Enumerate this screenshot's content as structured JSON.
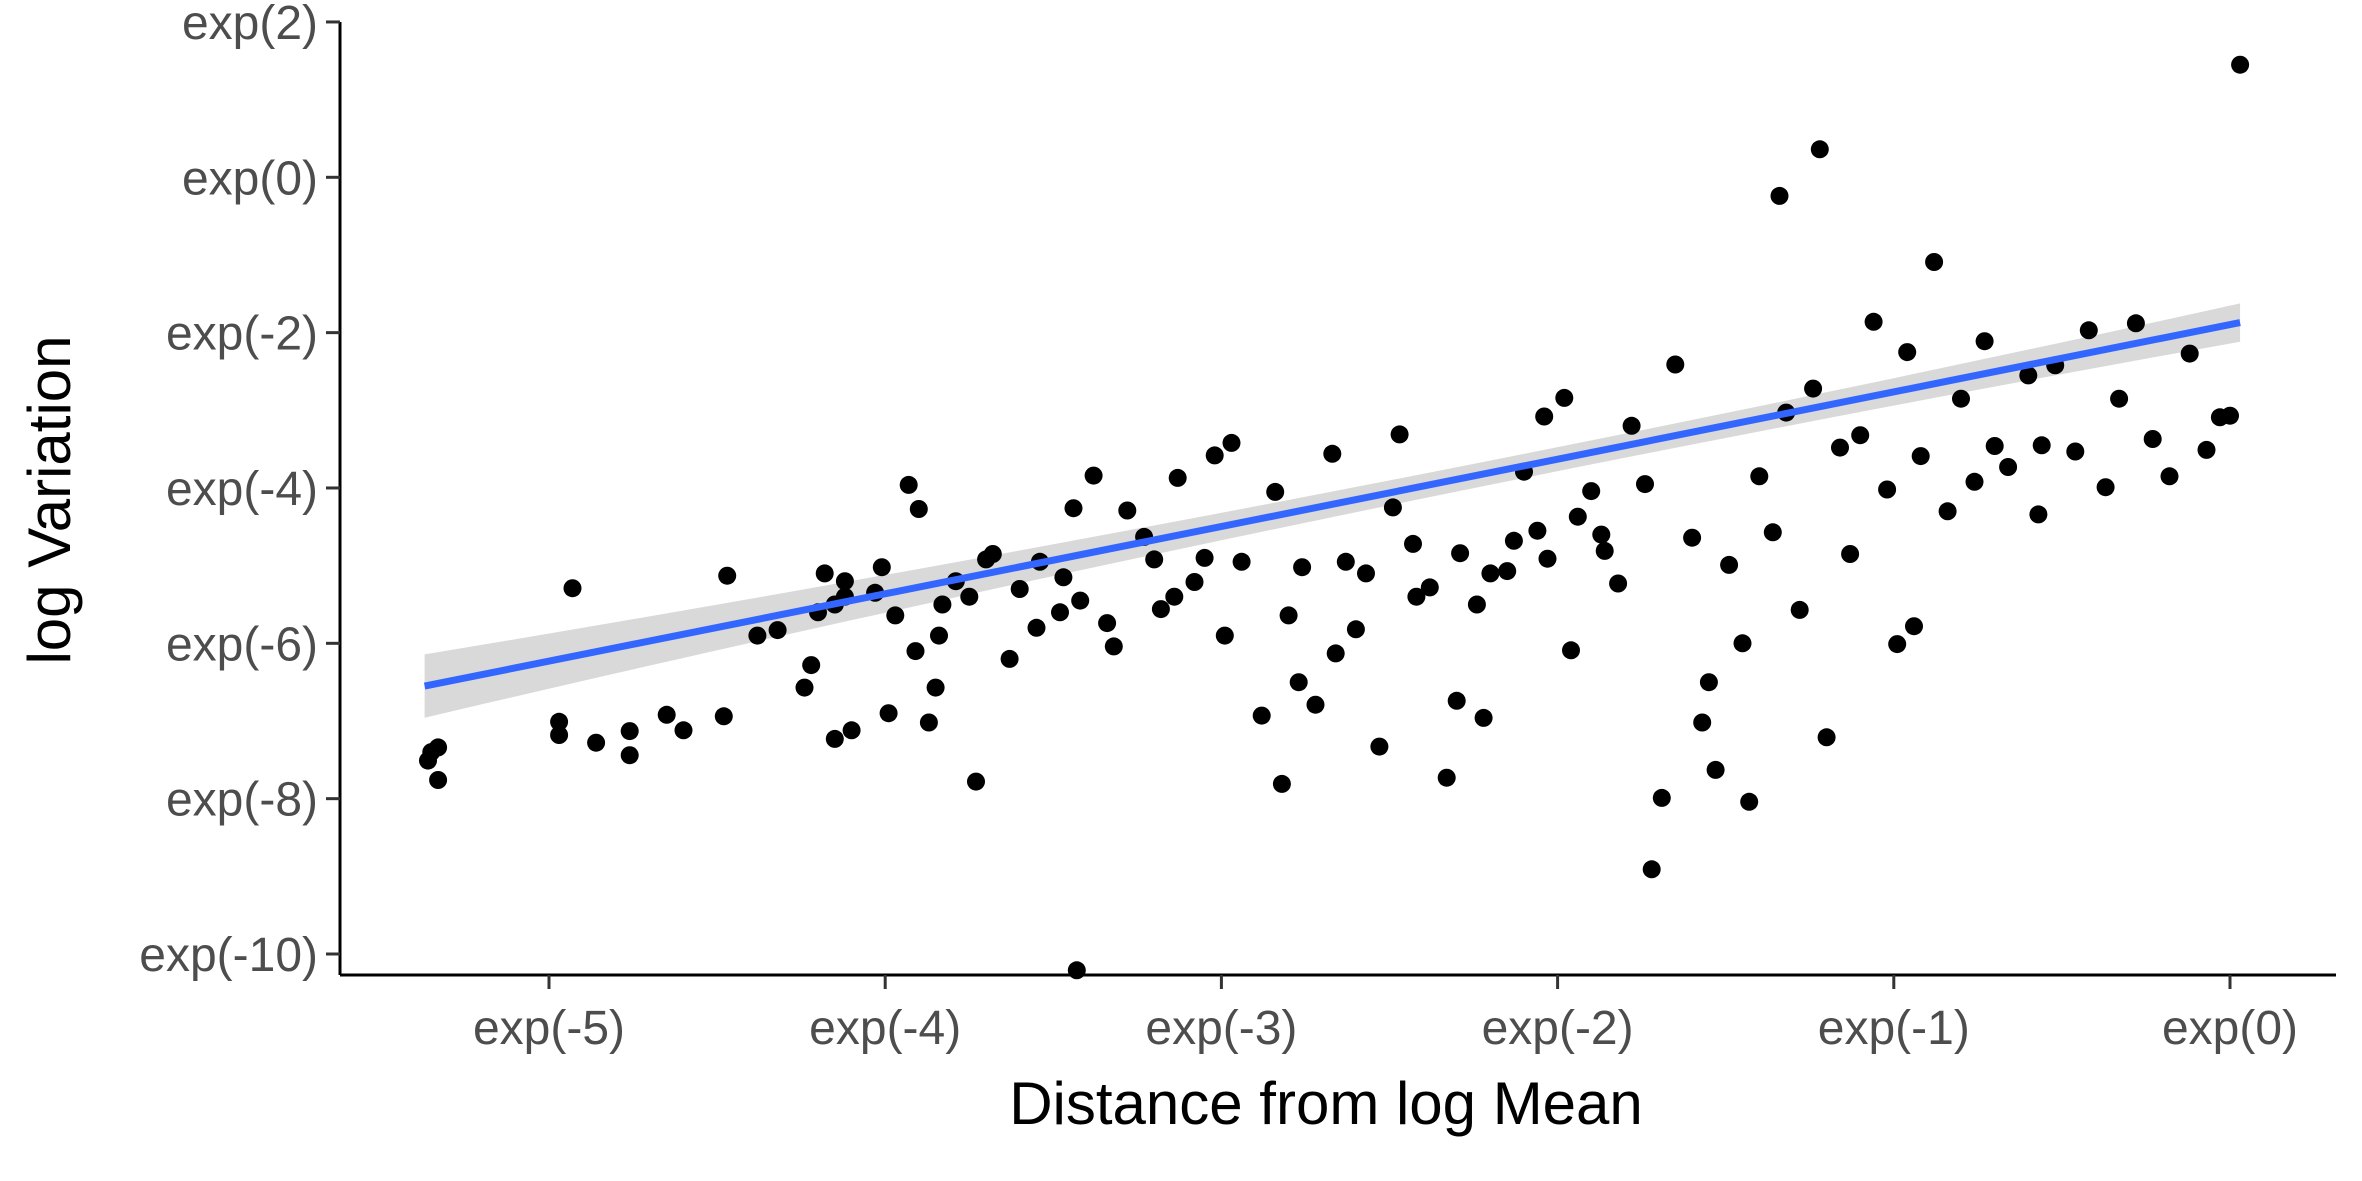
{
  "chart_data": {
    "type": "scatter",
    "title": "",
    "xlabel": "Distance from log Mean",
    "ylabel": "log Variation",
    "xlim": [
      -5.63,
      0.3
    ],
    "ylim": [
      -10.25,
      2.05
    ],
    "x_ticks": [
      {
        "value": -5,
        "label": "exp(-5)"
      },
      {
        "value": -4,
        "label": "exp(-4)"
      },
      {
        "value": -3,
        "label": "exp(-3)"
      },
      {
        "value": -2,
        "label": "exp(-2)"
      },
      {
        "value": -1,
        "label": "exp(-1)"
      },
      {
        "value": 0,
        "label": "exp(0)"
      }
    ],
    "y_ticks": [
      {
        "value": 2,
        "label": "exp(2)"
      },
      {
        "value": 0,
        "label": "exp(0)"
      },
      {
        "value": -2,
        "label": "exp(-2)"
      },
      {
        "value": -4,
        "label": "exp(-4)"
      },
      {
        "value": -6,
        "label": "exp(-6)"
      },
      {
        "value": -8,
        "label": "exp(-8)"
      },
      {
        "value": -10,
        "label": "exp(-10)"
      }
    ],
    "grid": false,
    "point_color": "#000000",
    "trend_line": {
      "type": "linear",
      "x": [
        -5.37,
        0.03
      ],
      "y": [
        -6.55,
        -1.87
      ],
      "color": "#3366FF",
      "ribbon_color": "#CCCCCC"
    },
    "series": [
      {
        "points": [
          [
            -5.36,
            -7.51
          ],
          [
            -5.33,
            -7.34
          ],
          [
            -5.33,
            -7.76
          ],
          [
            -5.35,
            -7.4
          ],
          [
            -4.93,
            -5.29
          ],
          [
            -4.86,
            -7.28
          ],
          [
            -4.76,
            -7.13
          ],
          [
            -4.97,
            -7.01
          ],
          [
            -4.97,
            -7.18
          ],
          [
            -4.65,
            -6.92
          ],
          [
            -4.76,
            -7.44
          ],
          [
            -4.6,
            -7.12
          ],
          [
            -4.47,
            -5.13
          ],
          [
            -4.48,
            -6.94
          ],
          [
            -4.38,
            -5.9
          ],
          [
            -4.32,
            -5.83
          ],
          [
            -4.18,
            -5.1
          ],
          [
            -4.15,
            -7.23
          ],
          [
            -4.12,
            -5.4
          ],
          [
            -4.12,
            -5.2
          ],
          [
            -4.1,
            -7.12
          ],
          [
            -4.15,
            -5.5
          ],
          [
            -4.2,
            -5.6
          ],
          [
            -4.22,
            -6.28
          ],
          [
            -4.24,
            -6.57
          ],
          [
            -4.03,
            -5.35
          ],
          [
            -4.01,
            -5.02
          ],
          [
            -3.97,
            -5.64
          ],
          [
            -3.99,
            -6.9
          ],
          [
            -3.91,
            -6.1
          ],
          [
            -3.85,
            -6.57
          ],
          [
            -3.93,
            -3.96
          ],
          [
            -3.9,
            -4.27
          ],
          [
            -3.87,
            -7.02
          ],
          [
            -3.84,
            -5.9
          ],
          [
            -3.83,
            -5.5
          ],
          [
            -3.79,
            -5.2
          ],
          [
            -3.75,
            -5.4
          ],
          [
            -3.73,
            -7.78
          ],
          [
            -3.7,
            -4.92
          ],
          [
            -3.68,
            -4.85
          ],
          [
            -3.63,
            -6.2
          ],
          [
            -3.6,
            -5.3
          ],
          [
            -3.55,
            -5.8
          ],
          [
            -3.54,
            -4.95
          ],
          [
            -3.48,
            -5.6
          ],
          [
            -3.47,
            -5.15
          ],
          [
            -3.44,
            -4.26
          ],
          [
            -3.43,
            -10.21
          ],
          [
            -3.42,
            -5.45
          ],
          [
            -3.38,
            -3.84
          ],
          [
            -3.34,
            -5.74
          ],
          [
            -3.32,
            -6.04
          ],
          [
            -3.28,
            -4.29
          ],
          [
            -3.23,
            -4.63
          ],
          [
            -3.2,
            -4.92
          ],
          [
            -3.18,
            -5.56
          ],
          [
            -3.14,
            -5.4
          ],
          [
            -3.13,
            -3.87
          ],
          [
            -3.08,
            -5.21
          ],
          [
            -3.02,
            -3.58
          ],
          [
            -3.05,
            -4.9
          ],
          [
            -2.99,
            -5.9
          ],
          [
            -2.97,
            -3.42
          ],
          [
            -2.94,
            -4.95
          ],
          [
            -2.88,
            -6.93
          ],
          [
            -2.84,
            -4.05
          ],
          [
            -2.82,
            -7.81
          ],
          [
            -2.8,
            -5.64
          ],
          [
            -2.77,
            -6.5
          ],
          [
            -2.76,
            -5.02
          ],
          [
            -2.72,
            -6.79
          ],
          [
            -2.67,
            -3.56
          ],
          [
            -2.66,
            -6.13
          ],
          [
            -2.63,
            -4.95
          ],
          [
            -2.6,
            -5.82
          ],
          [
            -2.57,
            -5.1
          ],
          [
            -2.53,
            -7.33
          ],
          [
            -2.49,
            -4.25
          ],
          [
            -2.47,
            -3.31
          ],
          [
            -2.43,
            -4.72
          ],
          [
            -2.42,
            -5.4
          ],
          [
            -2.38,
            -5.28
          ],
          [
            -2.33,
            -7.73
          ],
          [
            -2.3,
            -6.74
          ],
          [
            -2.29,
            -4.84
          ],
          [
            -2.24,
            -5.5
          ],
          [
            -2.2,
            -5.1
          ],
          [
            -2.15,
            -5.07
          ],
          [
            -2.13,
            -4.68
          ],
          [
            -2.1,
            -3.79
          ],
          [
            -2.06,
            -4.55
          ],
          [
            -2.03,
            -4.91
          ],
          [
            -1.98,
            -2.84
          ],
          [
            -1.96,
            -6.09
          ],
          [
            -1.94,
            -4.37
          ],
          [
            -1.9,
            -4.04
          ],
          [
            -1.86,
            -4.81
          ],
          [
            -1.82,
            -5.23
          ],
          [
            -1.78,
            -3.2
          ],
          [
            -1.74,
            -3.95
          ],
          [
            -1.72,
            -8.91
          ],
          [
            -1.69,
            -7.99
          ],
          [
            -1.65,
            -2.41
          ],
          [
            -1.6,
            -4.64
          ],
          [
            -1.57,
            -7.02
          ],
          [
            -1.53,
            -7.63
          ],
          [
            -1.49,
            -4.99
          ],
          [
            -1.45,
            -6.0
          ],
          [
            -1.43,
            -8.04
          ],
          [
            -1.4,
            -3.85
          ],
          [
            -1.36,
            -4.57
          ],
          [
            -1.32,
            -3.03
          ],
          [
            -1.28,
            -5.57
          ],
          [
            -1.24,
            -2.72
          ],
          [
            -1.2,
            -7.21
          ],
          [
            -1.16,
            -3.48
          ],
          [
            -1.13,
            -4.85
          ],
          [
            -1.1,
            -3.32
          ],
          [
            -1.06,
            -1.86
          ],
          [
            -1.02,
            -4.02
          ],
          [
            -0.99,
            -6.01
          ],
          [
            -0.96,
            -2.25
          ],
          [
            -0.92,
            -3.59
          ],
          [
            -0.88,
            -1.09
          ],
          [
            -0.84,
            -4.3
          ],
          [
            -0.8,
            -2.85
          ],
          [
            -0.76,
            -3.92
          ],
          [
            -0.73,
            -2.11
          ],
          [
            -0.7,
            -3.46
          ],
          [
            -0.66,
            -3.73
          ],
          [
            -0.6,
            -2.55
          ],
          [
            -0.56,
            -3.45
          ],
          [
            -0.52,
            -2.42
          ],
          [
            -0.46,
            -3.53
          ],
          [
            -0.42,
            -1.97
          ],
          [
            -0.37,
            -3.99
          ],
          [
            -0.33,
            -2.85
          ],
          [
            -0.28,
            -1.88
          ],
          [
            -0.23,
            -3.37
          ],
          [
            -0.18,
            -3.85
          ],
          [
            -0.12,
            -2.27
          ],
          [
            -0.07,
            -3.51
          ],
          [
            -0.03,
            -3.09
          ],
          [
            0.0,
            -3.07
          ],
          [
            0.03,
            1.45
          ],
          [
            -1.22,
            0.36
          ],
          [
            -1.34,
            -0.24
          ],
          [
            -2.22,
            -6.96
          ],
          [
            -1.55,
            -6.5
          ],
          [
            -0.94,
            -5.78
          ],
          [
            -0.57,
            -4.34
          ],
          [
            -2.04,
            -3.08
          ],
          [
            -1.87,
            -4.6
          ]
        ]
      }
    ]
  }
}
